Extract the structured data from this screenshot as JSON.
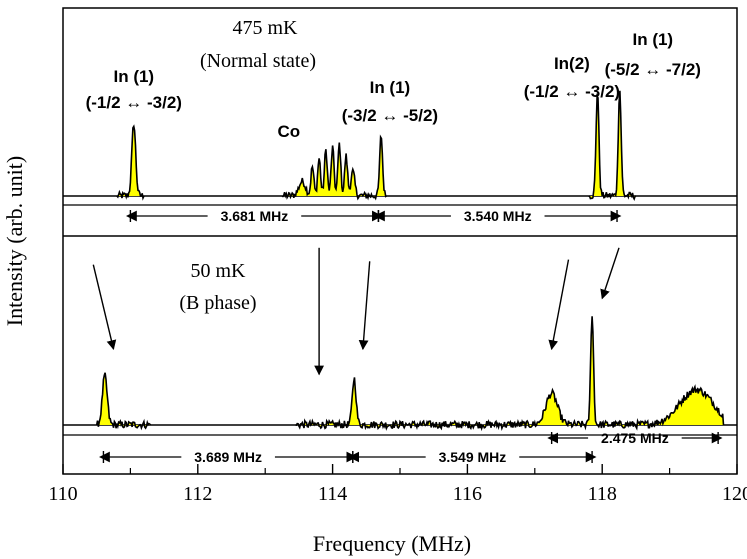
{
  "chart_data": {
    "type": "line",
    "xlabel": "Frequency (MHz)",
    "ylabel": "Intensity (arb. unit)",
    "xlim": [
      110,
      120
    ],
    "x_ticks": [
      "110",
      "112",
      "114",
      "116",
      "118",
      "120"
    ],
    "fill_color": "#ffff00",
    "line_color": "#000000",
    "panels": [
      {
        "name": "top",
        "temperature_label": "475 mK",
        "state_label": "(Normal state)",
        "spectrum_segments": [
          {
            "x_range": [
              110.8,
              111.2
            ],
            "peaks": [
              {
                "x": 111.05,
                "height": 0.6,
                "width": 0.04
              }
            ]
          },
          {
            "x_range": [
              113.25,
              114.8
            ],
            "peaks": [
              {
                "x": 113.55,
                "height": 0.12,
                "width": 0.07
              },
              {
                "x": 113.7,
                "height": 0.24,
                "width": 0.03
              },
              {
                "x": 113.8,
                "height": 0.31,
                "width": 0.03
              },
              {
                "x": 113.9,
                "height": 0.38,
                "width": 0.03
              },
              {
                "x": 114.0,
                "height": 0.4,
                "width": 0.03
              },
              {
                "x": 114.1,
                "height": 0.43,
                "width": 0.03
              },
              {
                "x": 114.2,
                "height": 0.33,
                "width": 0.03
              },
              {
                "x": 114.3,
                "height": 0.2,
                "width": 0.04
              },
              {
                "x": 114.72,
                "height": 0.5,
                "width": 0.03
              }
            ]
          },
          {
            "x_range": [
              117.8,
              118.5
            ],
            "peaks": [
              {
                "x": 117.93,
                "height": 0.87,
                "width": 0.03
              },
              {
                "x": 118.26,
                "height": 0.88,
                "width": 0.03
              }
            ]
          }
        ],
        "annotations": [
          {
            "lines": [
              "In (1)",
              "(-1/2 ↔ -3/2)"
            ],
            "x": 111.05
          },
          {
            "lines": [
              "Co"
            ],
            "x": 113.35
          },
          {
            "lines": [
              "In (1)",
              "(-3/2 ↔ -5/2)"
            ],
            "x": 114.85
          },
          {
            "lines": [
              "In(2)",
              "(-1/2 ↔ -3/2)"
            ],
            "x": 117.55
          },
          {
            "lines": [
              "In (1)",
              "(-5/2 ↔ -7/2)"
            ],
            "x": 118.75
          }
        ],
        "spacings": [
          {
            "label": "3.681 MHz",
            "from": 111.0,
            "to": 114.68
          },
          {
            "label": "3.540 MHz",
            "from": 114.68,
            "to": 118.22
          }
        ]
      },
      {
        "name": "bottom",
        "temperature_label": "50 mK",
        "state_label": "(B phase)",
        "spectrum_segments": [
          {
            "x_range": [
              110.5,
              111.3
            ],
            "peaks": [
              {
                "x": 110.62,
                "height": 0.39,
                "width": 0.05
              }
            ]
          },
          {
            "x_range": [
              113.45,
              119.8
            ],
            "peaks": [
              {
                "x": 114.32,
                "height": 0.37,
                "width": 0.04
              },
              {
                "x": 117.25,
                "height": 0.25,
                "width": 0.12
              },
              {
                "x": 117.85,
                "height": 0.88,
                "width": 0.03
              },
              {
                "x": 119.4,
                "height": 0.28,
                "width": 0.35
              }
            ]
          }
        ],
        "arrows": [
          {
            "from": [
              110.45,
              0.95
            ],
            "to": [
              110.75,
              0.45
            ]
          },
          {
            "from": [
              113.8,
              1.05
            ],
            "to": [
              113.8,
              0.3
            ]
          },
          {
            "from": [
              114.55,
              0.97
            ],
            "to": [
              114.45,
              0.45
            ]
          },
          {
            "from": [
              117.5,
              0.98
            ],
            "to": [
              117.25,
              0.45
            ]
          },
          {
            "from": [
              118.25,
              1.05
            ],
            "to": [
              118.0,
              0.75
            ]
          }
        ],
        "spacings": [
          {
            "label": "3.689 MHz",
            "from": 110.6,
            "to": 114.3
          },
          {
            "label": "3.549 MHz",
            "from": 114.3,
            "to": 117.85
          },
          {
            "label": "2.475 MHz",
            "from": 117.25,
            "to": 119.72
          }
        ]
      }
    ]
  }
}
